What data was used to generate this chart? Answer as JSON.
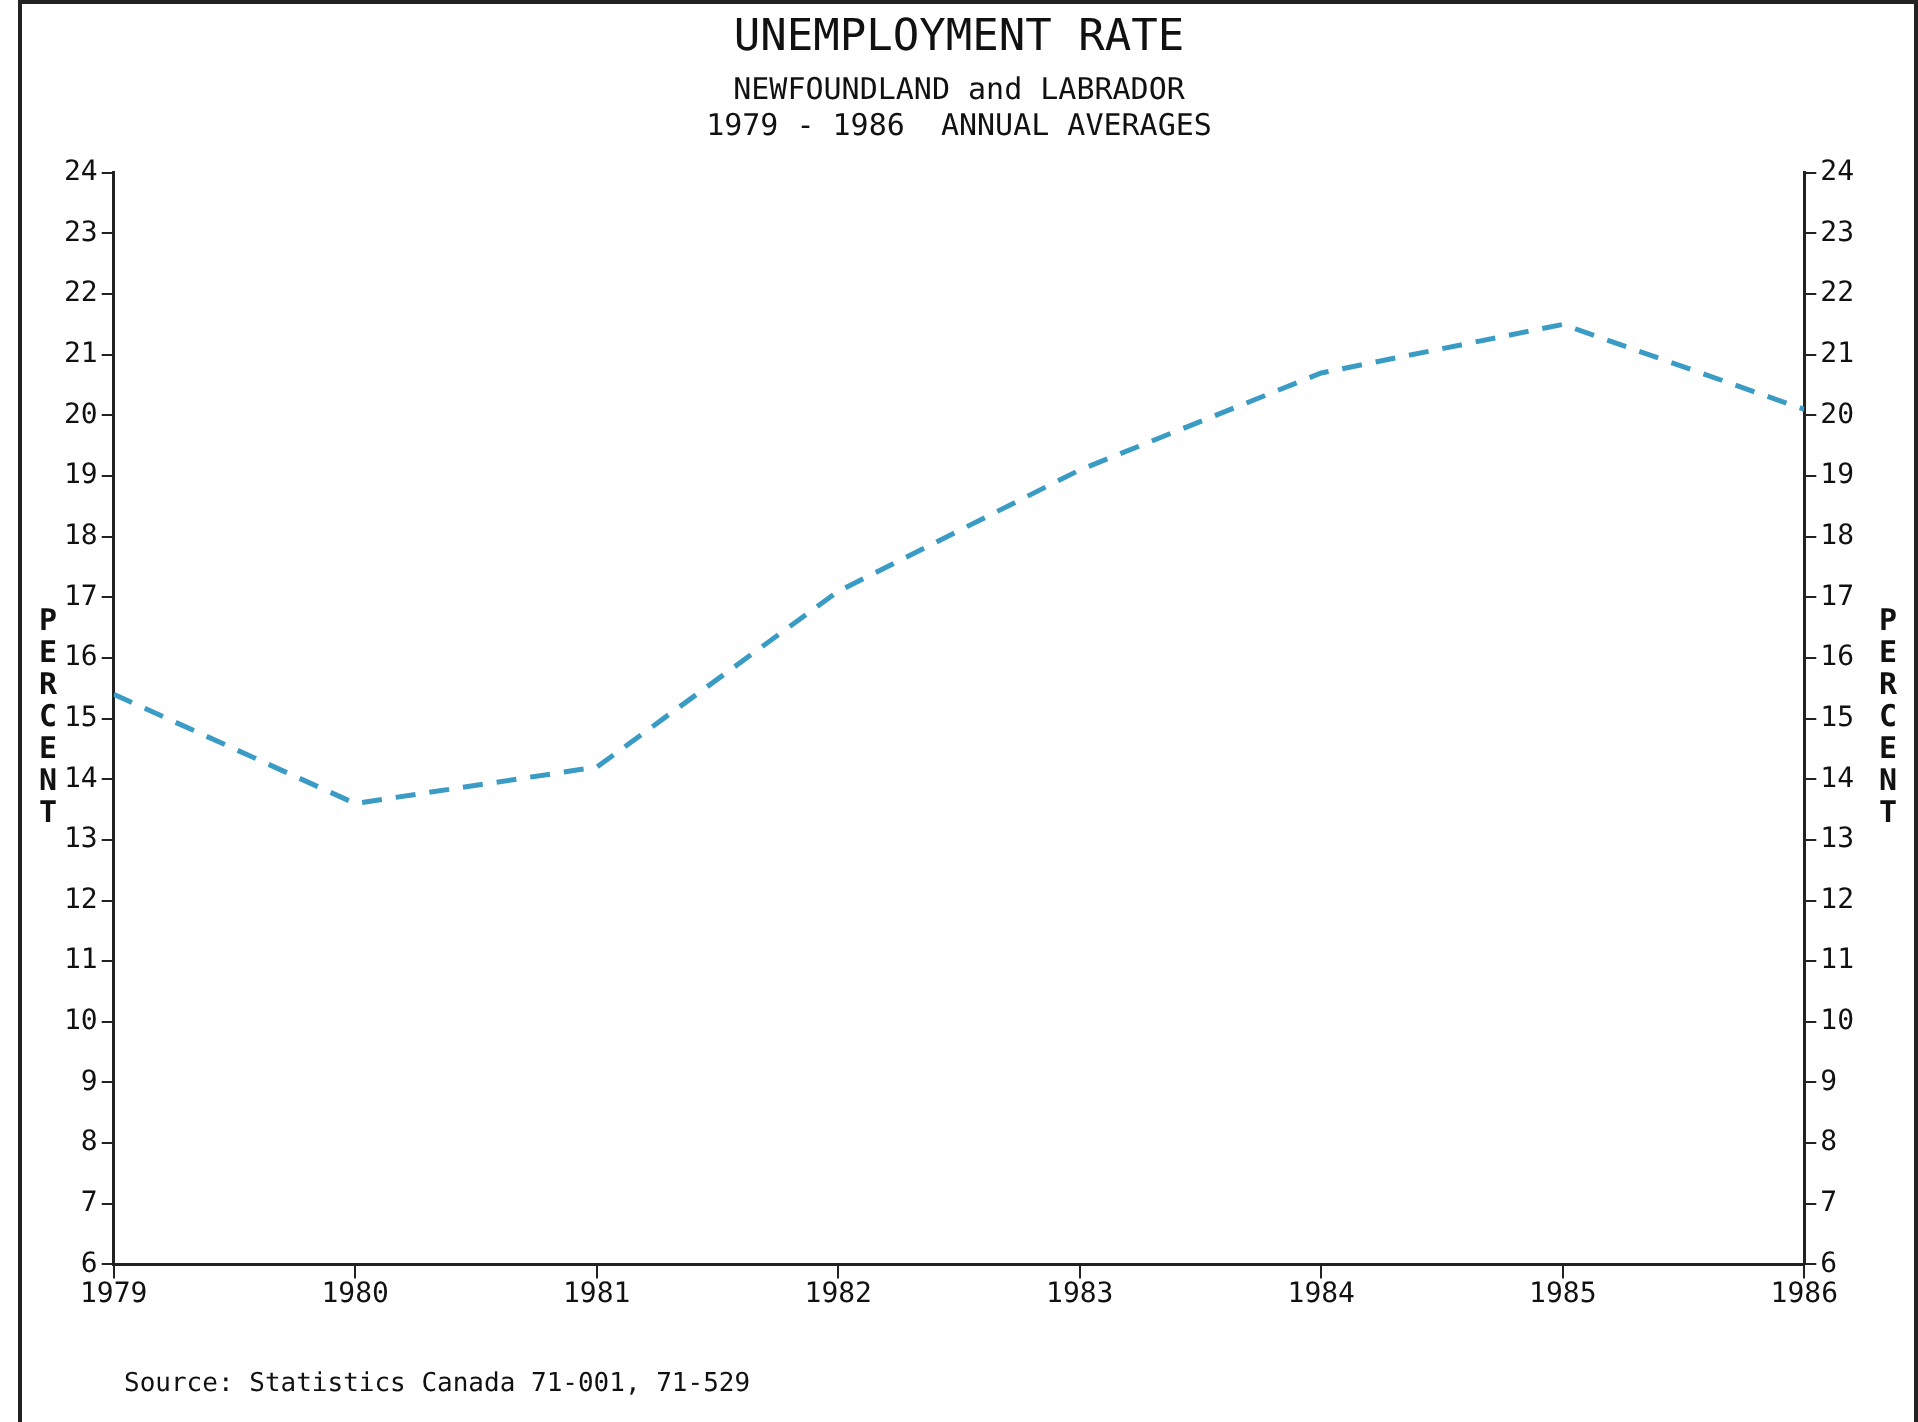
{
  "chart_data": {
    "type": "line",
    "title": "UNEMPLOYMENT RATE",
    "subtitle": "NEWFOUNDLAND and LABRADOR\n1979 - 1986  ANNUAL AVERAGES",
    "ylabel": "PERCENT",
    "y2label": "PERCENT",
    "x": [
      1979,
      1980,
      1981,
      1982,
      1983,
      1984,
      1985,
      1986
    ],
    "series": [
      {
        "color": "#3a9cc4",
        "values": [
          15.4,
          13.6,
          14.2,
          17.1,
          19.1,
          20.7,
          21.5,
          20.1
        ]
      }
    ],
    "xlim": [
      1979,
      1986
    ],
    "xticks": [
      1979,
      1980,
      1981,
      1982,
      1983,
      1984,
      1985,
      1986
    ],
    "ylim": [
      6,
      24
    ],
    "yticks": [
      6,
      7,
      8,
      9,
      10,
      11,
      12,
      13,
      14,
      15,
      16,
      17,
      18,
      19,
      20,
      21,
      22,
      23,
      24
    ],
    "y2lim": [
      6,
      24
    ],
    "y2ticks": [
      6,
      7,
      8,
      9,
      10,
      11,
      12,
      13,
      14,
      15,
      16,
      17,
      18,
      19,
      20,
      21,
      22,
      23,
      24
    ],
    "grid": false,
    "legend": false,
    "marker": "none",
    "line_style": "dashed",
    "annotations": [
      "Source: Statistics Canada 71-001, 71-529"
    ]
  }
}
